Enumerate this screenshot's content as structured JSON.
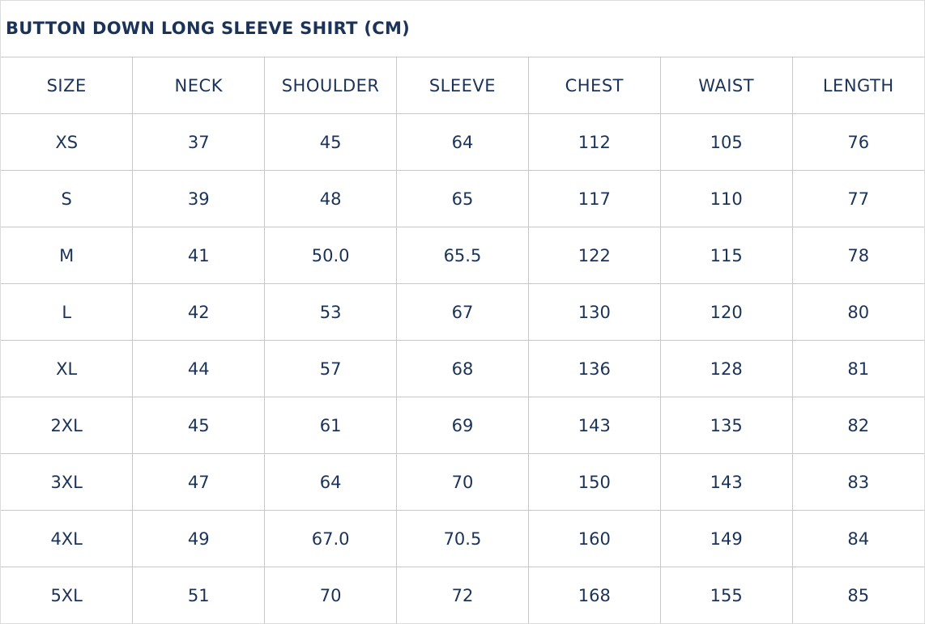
{
  "title": "BUTTON DOWN LONG SLEEVE SHIRT (CM)",
  "columns": [
    "SIZE",
    "NECK",
    "SHOULDER",
    "SLEEVE",
    "CHEST",
    "WAIST",
    "LENGTH"
  ],
  "rows": [
    [
      "XS",
      "37",
      "45",
      "64",
      "112",
      "105",
      "76"
    ],
    [
      "S",
      "39",
      "48",
      "65",
      "117",
      "110",
      "77"
    ],
    [
      "M",
      "41",
      "50.0",
      "65.5",
      "122",
      "115",
      "78"
    ],
    [
      "L",
      "42",
      "53",
      "67",
      "130",
      "120",
      "80"
    ],
    [
      "XL",
      "44",
      "57",
      "68",
      "136",
      "128",
      "81"
    ],
    [
      "2XL",
      "45",
      "61",
      "69",
      "143",
      "135",
      "82"
    ],
    [
      "3XL",
      "47",
      "64",
      "70",
      "150",
      "143",
      "83"
    ],
    [
      "4XL",
      "49",
      "67.0",
      "70.5",
      "160",
      "149",
      "84"
    ],
    [
      "5XL",
      "51",
      "70",
      "72",
      "168",
      "155",
      "85"
    ]
  ],
  "colors": {
    "text": "#1b3358",
    "border": "#c8c8c8"
  }
}
